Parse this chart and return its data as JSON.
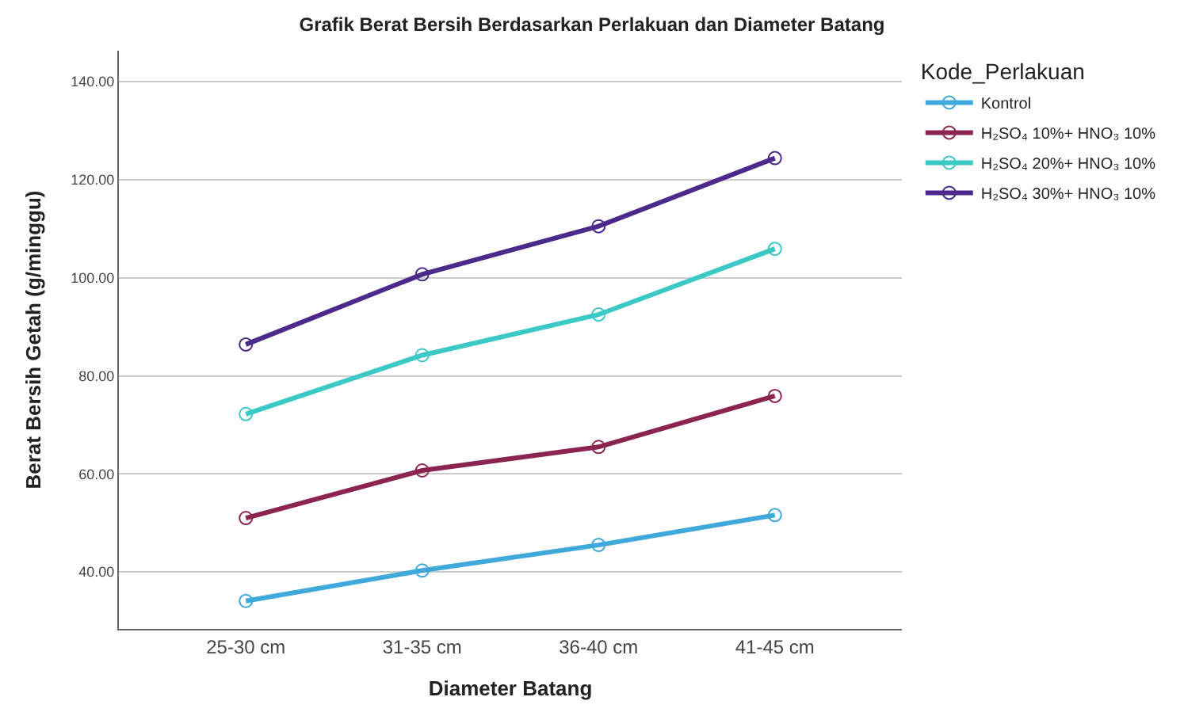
{
  "chart_data": {
    "type": "line",
    "title": "Grafik Berat Bersih Berdasarkan Perlakuan dan Diameter Batang",
    "xlabel": "Diameter Batang",
    "ylabel": "Berat Bersih Getah (g/minggu)",
    "legend_title": "Kode_Perlakuan",
    "categories": [
      "25-30 cm",
      "31-35 cm",
      "36-40 cm",
      "41-45 cm"
    ],
    "series": [
      {
        "name": "Kontrol",
        "color": "#3fa9dc",
        "values": [
          34.1,
          40.3,
          45.5,
          51.6
        ]
      },
      {
        "name": "H₂SO₄ 10%+ HNO₃ 10%",
        "color": "#8c2452",
        "values": [
          51.0,
          60.7,
          65.5,
          75.9
        ]
      },
      {
        "name": "H₂SO₄ 20%+ HNO₃ 10%",
        "color": "#3cc8c4",
        "values": [
          72.2,
          84.2,
          92.5,
          105.9
        ]
      },
      {
        "name": "H₂SO₄ 30%+ HNO₃ 10%",
        "color": "#4b2a8c",
        "values": [
          86.4,
          100.7,
          110.5,
          124.4
        ]
      }
    ],
    "ylim": [
      28.4,
      146.3
    ],
    "yticks": [
      {
        "value": 40,
        "label": "40.00"
      },
      {
        "value": 60,
        "label": "60.00"
      },
      {
        "value": 80,
        "label": "80.00"
      },
      {
        "value": 100,
        "label": "100.00"
      },
      {
        "value": 120,
        "label": "120.00"
      },
      {
        "value": 140,
        "label": "140.00"
      }
    ],
    "grid": "y",
    "legend": "top right",
    "marker": "circle",
    "line_style": "solid"
  }
}
